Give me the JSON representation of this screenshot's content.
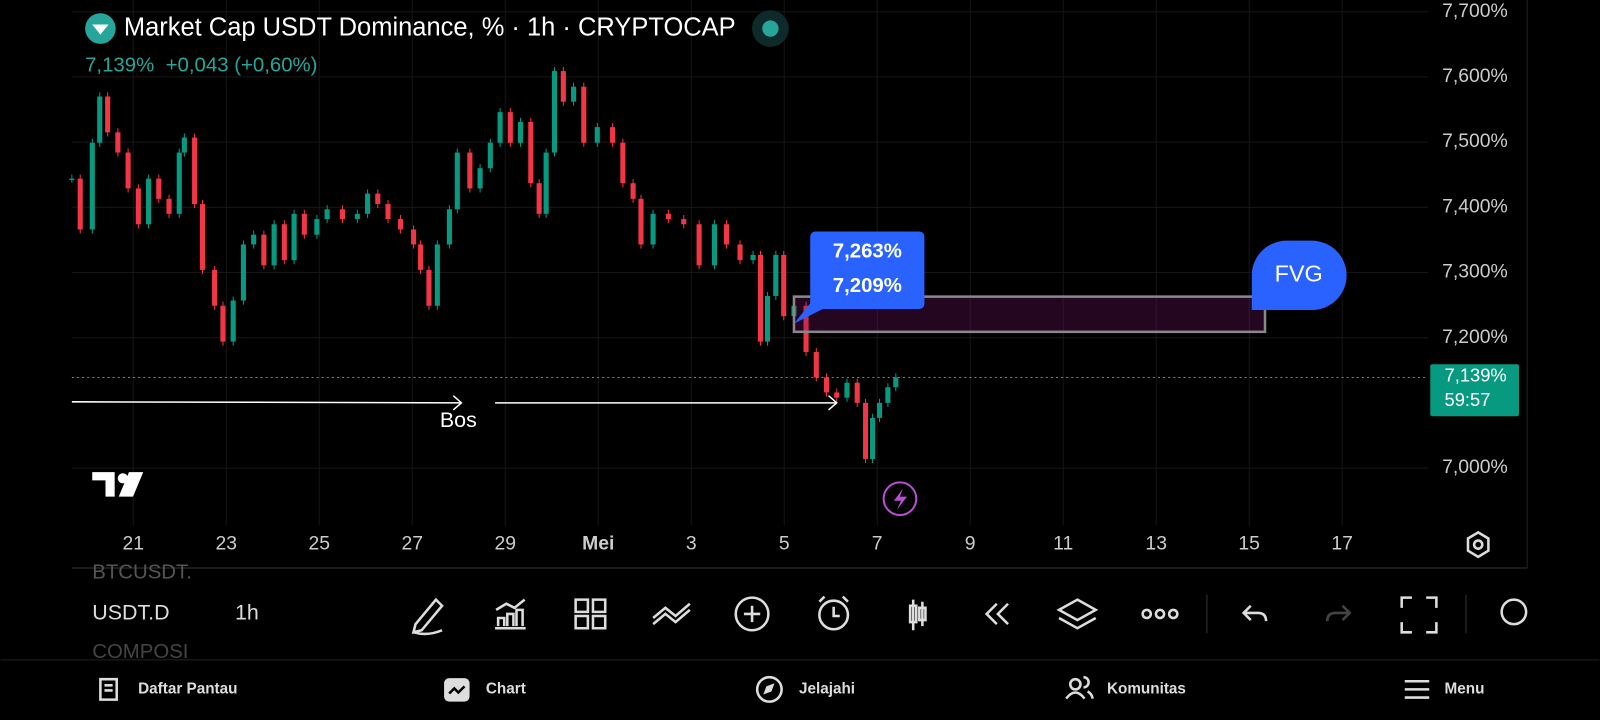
{
  "header": {
    "title": "Market Cap USDT Dominance, % · 1h · CRYPTOCAP",
    "last": "7,139%",
    "change": "+0,043 (+0,60%)"
  },
  "chart_data": {
    "type": "candlestick",
    "x": [
      -1.32,
      -1.14,
      -0.88,
      -0.72,
      -0.55,
      -0.33,
      -0.11,
      0.11,
      0.33,
      0.55,
      0.77,
      0.99,
      1.1,
      1.32,
      1.49,
      1.75,
      1.93,
      2.15,
      2.37,
      2.59,
      2.81,
      3.03,
      3.25,
      3.46,
      3.68,
      3.95,
      4.17,
      4.5,
      4.82,
      5.04,
      5.26,
      5.48,
      5.75,
      6.03,
      6.18,
      6.36,
      6.54,
      6.8,
      6.97,
      7.24,
      7.46,
      7.68,
      7.89,
      8.11,
      8.33,
      8.55,
      8.73,
      8.88,
      9.06,
      9.25,
      9.47,
      9.69,
      9.98,
      10.31,
      10.53,
      10.75,
      10.92,
      11.18,
      11.51,
      11.84,
      12.17,
      12.5,
      12.76,
      13.05,
      13.33,
      13.49,
      13.64,
      13.82,
      13.99,
      14.21,
      14.47,
      14.69,
      14.91,
      15.13,
      15.35,
      15.57,
      15.75,
      15.9,
      16.05,
      16.23,
      16.4
    ],
    "values": [
      7.444,
      7.366,
      7.499,
      7.57,
      7.515,
      7.484,
      7.429,
      7.374,
      7.444,
      7.413,
      7.39,
      7.484,
      7.507,
      7.405,
      7.304,
      7.249,
      7.194,
      7.257,
      7.343,
      7.358,
      7.311,
      7.374,
      7.319,
      7.39,
      7.358,
      7.382,
      7.397,
      7.382,
      7.39,
      7.421,
      7.405,
      7.382,
      7.366,
      7.343,
      7.304,
      7.249,
      7.343,
      7.397,
      7.484,
      7.429,
      7.46,
      7.499,
      7.546,
      7.499,
      7.531,
      7.437,
      7.39,
      7.484,
      7.609,
      7.562,
      7.585,
      7.499,
      7.523,
      7.499,
      7.437,
      7.413,
      7.343,
      7.39,
      7.382,
      7.374,
      7.311,
      7.374,
      7.343,
      7.319,
      7.327,
      7.194,
      7.264,
      7.327,
      7.233,
      7.249,
      7.178,
      7.139,
      7.116,
      7.108,
      7.131,
      7.1,
      7.014,
      7.077,
      7.1,
      7.124,
      7.139
    ],
    "up_color": "#089981",
    "down_color": "#f23645",
    "xlim": [
      -1.32,
      27.85
    ],
    "ylim": [
      6.928,
      7.718
    ],
    "xticks": [
      {
        "value": 0,
        "label": "21"
      },
      {
        "value": 2,
        "label": "23"
      },
      {
        "value": 4,
        "label": "25"
      },
      {
        "value": 6,
        "label": "27"
      },
      {
        "value": 8,
        "label": "29"
      },
      {
        "value": 10,
        "label": "Mei"
      },
      {
        "value": 12,
        "label": "3"
      },
      {
        "value": 14,
        "label": "5"
      },
      {
        "value": 16,
        "label": "7"
      },
      {
        "value": 18,
        "label": "9"
      },
      {
        "value": 20,
        "label": "11"
      },
      {
        "value": 22,
        "label": "13"
      },
      {
        "value": 24,
        "label": "15"
      },
      {
        "value": 26,
        "label": "17"
      }
    ],
    "yticks": [
      {
        "value": 7.0,
        "label": "7,000%"
      },
      {
        "value": 7.2,
        "label": "7,200%"
      },
      {
        "value": 7.3,
        "label": "7,300%"
      },
      {
        "value": 7.4,
        "label": "7,400%"
      },
      {
        "value": 7.5,
        "label": "7,500%"
      },
      {
        "value": 7.6,
        "label": "7,600%"
      },
      {
        "value": 7.7,
        "label": "7,700%"
      }
    ],
    "grid": true,
    "last_price": {
      "value": 7.139,
      "label": "7,139%"
    },
    "countdown": "59:57",
    "fvg": {
      "label": "FVG",
      "x": [
        14.21,
        24.34
      ],
      "top": {
        "value": 7.263,
        "label": "7,263%"
      },
      "bottom": {
        "value": 7.209,
        "label": "7,209%"
      }
    },
    "bos": "Bos"
  },
  "toolbar": {
    "symbols": [
      "BTCUSDT.",
      "USDT.D",
      "COMPOSI"
    ],
    "interval": "1h"
  },
  "nav": [
    "Daftar Pantau",
    "Chart",
    "Jelajahi",
    "Komunitas",
    "Menu"
  ]
}
